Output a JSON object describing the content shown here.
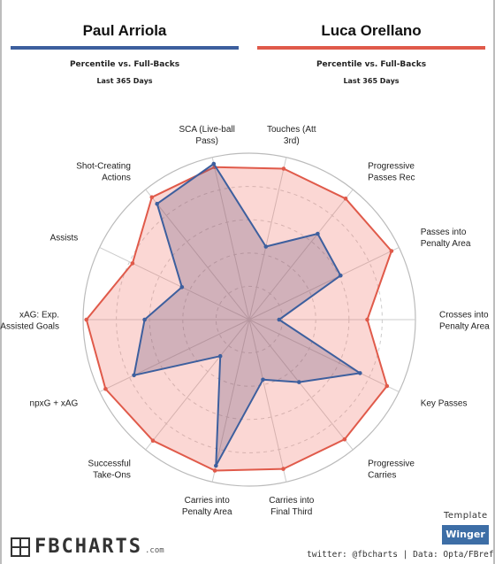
{
  "header": {
    "player_left": "Paul Arriola",
    "player_right": "Luca Orellano",
    "subtitle_left": "Percentile vs. Full-Backs",
    "subtitle_right": "Percentile vs. Full-Backs",
    "period_left": "Last 365 Days",
    "period_right": "Last 365 Days"
  },
  "colors": {
    "player_left": "#3d5f9e",
    "player_right": "#e05a4a",
    "grid": "#cccccc"
  },
  "chart_data": {
    "type": "radar",
    "axis_max": 100,
    "grid_rings": [
      20,
      40,
      60,
      80,
      100
    ],
    "categories": [
      [
        "Touches (Att",
        "3rd)"
      ],
      [
        "Progressive",
        "Passes Rec"
      ],
      [
        "Passes into",
        "Penalty Area"
      ],
      [
        "Crosses into",
        "Penalty Area"
      ],
      [
        "Key Passes"
      ],
      [
        "Progressive",
        "Carries"
      ],
      [
        "Carries into",
        "Final Third"
      ],
      [
        "Carries into",
        "Penalty Area"
      ],
      [
        "Successful",
        "Take-Ons"
      ],
      [
        "npxG + xAG"
      ],
      [
        "xAG: Exp.",
        "Assisted Goals"
      ],
      [
        "Assists"
      ],
      [
        "Shot-Creating",
        "Actions"
      ],
      [
        "SCA (Live-ball",
        "Pass)"
      ]
    ],
    "series": [
      {
        "name": "Luca Orellano",
        "values": [
          93,
          93,
          95,
          71,
          92,
          92,
          92,
          93,
          93,
          96,
          98,
          78,
          94,
          94
        ]
      },
      {
        "name": "Paul Arriola",
        "values": [
          45,
          66,
          61,
          18,
          74,
          48,
          37,
          90,
          28,
          77,
          63,
          45,
          89,
          96
        ]
      }
    ]
  },
  "logo": {
    "text": "FBCHARTS",
    "suffix": ".com"
  },
  "template": {
    "label": "Template",
    "value": "Winger"
  },
  "credit": "twitter: @fbcharts | Data: Opta/FBref"
}
